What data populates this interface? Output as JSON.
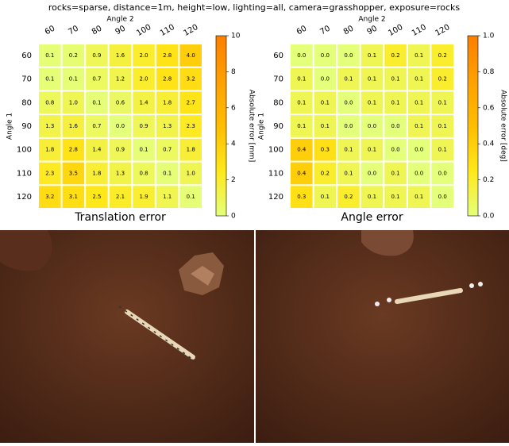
{
  "title": "rocks=sparse, distance=1m, height=low, lighting=all, camera=grasshopper, exposure=rocks",
  "chart_data": [
    {
      "type": "heatmap",
      "title": "Translation error",
      "x_label": "Angle 2",
      "y_label": "Angle 1",
      "x_categories": [
        "60",
        "70",
        "80",
        "90",
        "100",
        "110",
        "120"
      ],
      "y_categories": [
        "60",
        "70",
        "80",
        "90",
        "100",
        "110",
        "120"
      ],
      "values": [
        [
          0.1,
          0.2,
          0.9,
          1.6,
          2.0,
          2.8,
          4.0
        ],
        [
          0.1,
          0.1,
          0.7,
          1.2,
          2.0,
          2.8,
          3.2
        ],
        [
          0.8,
          1.0,
          0.1,
          0.6,
          1.4,
          1.8,
          2.7
        ],
        [
          1.3,
          1.6,
          0.7,
          0.0,
          0.9,
          1.3,
          2.3
        ],
        [
          1.8,
          2.8,
          1.4,
          0.9,
          0.1,
          0.7,
          1.8
        ],
        [
          2.3,
          3.5,
          1.8,
          1.3,
          0.8,
          0.1,
          1.0
        ],
        [
          3.2,
          3.1,
          2.5,
          2.1,
          1.9,
          1.1,
          0.1
        ]
      ],
      "value_labels": [
        [
          "0.1",
          "0.2",
          "0.9",
          "1.6",
          "2.0",
          "2.8",
          "4.0"
        ],
        [
          "0.1",
          "0.1",
          "0.7",
          "1.2",
          "2.0",
          "2.8",
          "3.2"
        ],
        [
          "0.8",
          "1.0",
          "0.1",
          "0.6",
          "1.4",
          "1.8",
          "2.7"
        ],
        [
          "1.3",
          "1.6",
          "0.7",
          "0.0",
          "0.9",
          "1.3",
          "2.3"
        ],
        [
          "1.8",
          "2.8",
          "1.4",
          "0.9",
          "0.1",
          "0.7",
          "1.8"
        ],
        [
          "2.3",
          "3.5",
          "1.8",
          "1.3",
          "0.8",
          "0.1",
          "1.0"
        ],
        [
          "3.2",
          "3.1",
          "2.5",
          "2.1",
          "1.9",
          "1.1",
          "0.1"
        ]
      ],
      "colorbar_label": "Absolute error [mm]",
      "ylim": [
        0,
        10
      ],
      "yticks": [
        0,
        2,
        4,
        6,
        8,
        10
      ],
      "colormap": [
        "#e4ff7a",
        "#ffe81a",
        "#ffbd00",
        "#ffa000",
        "#fc7f00"
      ]
    },
    {
      "type": "heatmap",
      "title": "Angle error",
      "x_label": "Angle 2",
      "y_label": "Angle 1",
      "x_categories": [
        "60",
        "70",
        "80",
        "90",
        "100",
        "110",
        "120"
      ],
      "y_categories": [
        "60",
        "70",
        "80",
        "90",
        "100",
        "110",
        "120"
      ],
      "values": [
        [
          0.0,
          0.0,
          0.0,
          0.1,
          0.2,
          0.1,
          0.2
        ],
        [
          0.1,
          0.0,
          0.1,
          0.1,
          0.1,
          0.1,
          0.2
        ],
        [
          0.1,
          0.1,
          0.0,
          0.1,
          0.1,
          0.1,
          0.1
        ],
        [
          0.1,
          0.1,
          0.0,
          0.0,
          0.0,
          0.1,
          0.1
        ],
        [
          0.4,
          0.3,
          0.1,
          0.1,
          0.0,
          0.0,
          0.1
        ],
        [
          0.4,
          0.2,
          0.1,
          0.0,
          0.1,
          0.0,
          0.0
        ],
        [
          0.3,
          0.1,
          0.2,
          0.1,
          0.1,
          0.1,
          0.0
        ]
      ],
      "value_labels": [
        [
          "0.0",
          "0.0",
          "0.0",
          "0.1",
          "0.2",
          "0.1",
          "0.2"
        ],
        [
          "0.1",
          "0.0",
          "0.1",
          "0.1",
          "0.1",
          "0.1",
          "0.2"
        ],
        [
          "0.1",
          "0.1",
          "0.0",
          "0.1",
          "0.1",
          "0.1",
          "0.1"
        ],
        [
          "0.1",
          "0.1",
          "0.0",
          "0.0",
          "0.0",
          "0.1",
          "0.1"
        ],
        [
          "0.4",
          "0.3",
          "0.1",
          "0.1",
          "0.0",
          "0.0",
          "0.1"
        ],
        [
          "0.4",
          "0.2",
          "0.1",
          "0.0",
          "0.1",
          "0.0",
          "0.0"
        ],
        [
          "0.3",
          "0.1",
          "0.2",
          "0.1",
          "0.1",
          "0.1",
          "0.0"
        ]
      ],
      "colorbar_label": "Absolute error [deg]",
      "ylim": [
        0,
        1
      ],
      "yticks": [
        {
          "value": 0,
          "label": "0.0"
        },
        {
          "value": 0.2,
          "label": "0.2"
        },
        {
          "value": 0.4,
          "label": "0.4"
        },
        {
          "value": 0.6,
          "label": "0.6"
        },
        {
          "value": 0.8,
          "label": "0.8"
        },
        {
          "value": 1,
          "label": "1.0"
        }
      ],
      "colormap": [
        "#e4ff7a",
        "#ffe81a",
        "#ffbd00",
        "#ffa000",
        "#fc7f00"
      ]
    }
  ]
}
